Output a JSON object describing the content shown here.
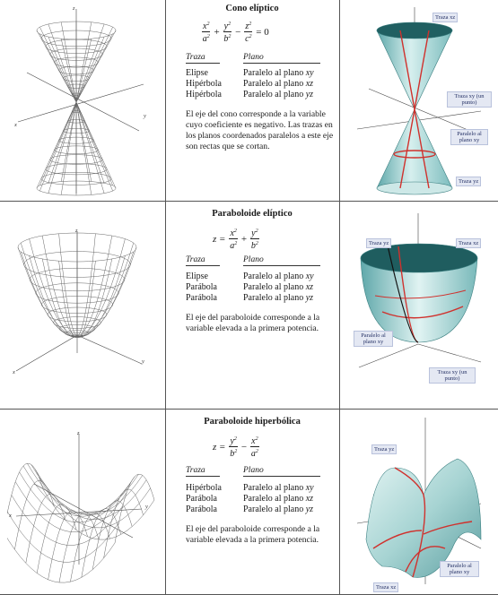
{
  "rows": [
    {
      "title": "Cono elíptico",
      "equation": {
        "terms": [
          {
            "sign": "",
            "num": "x",
            "den": "a"
          },
          {
            "sign": "+",
            "num": "y",
            "den": "b"
          },
          {
            "sign": "−",
            "num": "z",
            "den": "c"
          }
        ],
        "rhs": "= 0"
      },
      "table_headers": {
        "trace": "Traza",
        "plane": "Plano"
      },
      "traces": [
        {
          "trace": "Elipse",
          "plane_prefix": "Paralelo al plano",
          "plane_var": "xy"
        },
        {
          "trace": "Hipérbola",
          "plane_prefix": "Paralelo al plano",
          "plane_var": "xz"
        },
        {
          "trace": "Hipérbola",
          "plane_prefix": "Paralelo al plano",
          "plane_var": "yz"
        }
      ],
      "description": "El eje del cono corresponde a la variable cuyo coeficiente es negativo. Las trazas en los planos coordenados paralelos a este eje son rectas que se cortan.",
      "labels": [
        "Traza xz",
        "Traza xy (un punto)",
        "Paralelo al plano xy",
        "Traza yz"
      ]
    },
    {
      "title": "Paraboloide elíptico",
      "equation": {
        "lhs": "z =",
        "terms": [
          {
            "sign": "",
            "num": "x",
            "den": "a"
          },
          {
            "sign": "+",
            "num": "y",
            "den": "b"
          }
        ]
      },
      "table_headers": {
        "trace": "Traza",
        "plane": "Plano"
      },
      "traces": [
        {
          "trace": "Elipse",
          "plane_prefix": "Paralelo al plano",
          "plane_var": "xy"
        },
        {
          "trace": "Parábola",
          "plane_prefix": "Paralelo al plano",
          "plane_var": "xz"
        },
        {
          "trace": "Parábola",
          "plane_prefix": "Paralelo al plano",
          "plane_var": "yz"
        }
      ],
      "description": "El eje del paraboloide corresponde a la variable elevada a la primera potencia.",
      "labels": [
        "Traza yz",
        "Traza xz",
        "Paralelo al plano xy",
        "Traza xy (un punto)"
      ]
    },
    {
      "title": "Paraboloide hiperbólica",
      "equation": {
        "lhs": "z =",
        "terms": [
          {
            "sign": "",
            "num": "y",
            "den": "b"
          },
          {
            "sign": "−",
            "num": "x",
            "den": "a"
          }
        ]
      },
      "table_headers": {
        "trace": "Traza",
        "plane": "Plano"
      },
      "traces": [
        {
          "trace": "Hipérbola",
          "plane_prefix": "Paralelo al plano",
          "plane_var": "xy"
        },
        {
          "trace": "Parábola",
          "plane_prefix": "Paralelo al plano",
          "plane_var": "xz"
        },
        {
          "trace": "Parábola",
          "plane_prefix": "Paralelo al plano",
          "plane_var": "yz"
        }
      ],
      "description": "El eje del paraboloide corresponde a la variable elevada a la primera potencia.",
      "labels": [
        "Traza yz",
        "Paralelo al plano xy",
        "Traza xz"
      ]
    }
  ],
  "axis_letters": {
    "x": "x",
    "y": "y",
    "z": "z"
  },
  "colors": {
    "surface": "#a9d6d4",
    "trace_red": "#d0312d",
    "label_bg": "#e4e8f3",
    "label_text": "#263266",
    "rule": "#555555"
  }
}
